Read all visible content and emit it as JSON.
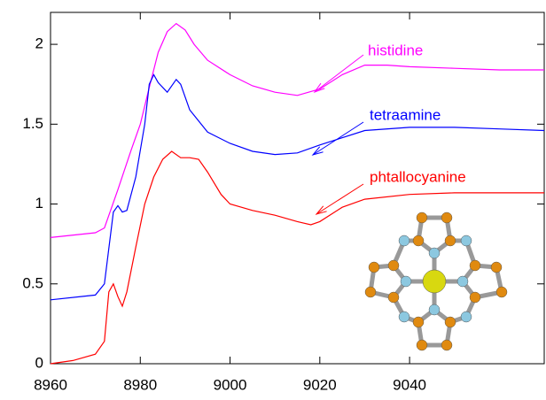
{
  "chart_data": {
    "type": "line",
    "xlim": [
      8960,
      9070
    ],
    "xticks": [
      8960,
      8980,
      9000,
      9020,
      9040
    ],
    "ylim": [
      0,
      2.2
    ],
    "yticks": [
      0,
      0.5,
      1,
      1.5,
      2
    ],
    "series": [
      {
        "name": "histidine",
        "color": "#ff00ff",
        "x": [
          8960,
          8970,
          8972,
          8975,
          8978,
          8980,
          8982,
          8984,
          8986,
          8988,
          8990,
          8992,
          8995,
          9000,
          9005,
          9010,
          9015,
          9020,
          9025,
          9030,
          9035,
          9040,
          9050,
          9060,
          9070
        ],
        "values": [
          0.79,
          0.82,
          0.85,
          1.09,
          1.34,
          1.5,
          1.73,
          1.95,
          2.08,
          2.13,
          2.09,
          2.0,
          1.9,
          1.81,
          1.74,
          1.7,
          1.68,
          1.72,
          1.81,
          1.87,
          1.87,
          1.86,
          1.85,
          1.84,
          1.84
        ]
      },
      {
        "name": "tetraamine",
        "color": "#0000ff",
        "x": [
          8960,
          8970,
          8972,
          8974,
          8975,
          8976,
          8977,
          8979,
          8981,
          8982,
          8983,
          8984,
          8986,
          8988,
          8989,
          8991,
          8995,
          9000,
          9005,
          9010,
          9015,
          9020,
          9030,
          9040,
          9050,
          9060,
          9070
        ],
        "values": [
          0.4,
          0.43,
          0.5,
          0.95,
          0.99,
          0.95,
          0.96,
          1.17,
          1.5,
          1.75,
          1.81,
          1.76,
          1.7,
          1.78,
          1.75,
          1.59,
          1.45,
          1.38,
          1.33,
          1.31,
          1.32,
          1.37,
          1.46,
          1.48,
          1.48,
          1.47,
          1.46
        ]
      },
      {
        "name": "phtallocyanine",
        "color": "#ff0000",
        "x": [
          8960,
          8965,
          8970,
          8972,
          8973,
          8974,
          8975,
          8976,
          8977,
          8979,
          8981,
          8983,
          8985,
          8987,
          8989,
          8991,
          8993,
          8995,
          8998,
          9000,
          9005,
          9010,
          9015,
          9018,
          9020,
          9025,
          9030,
          9040,
          9050,
          9070
        ],
        "values": [
          0.0,
          0.02,
          0.06,
          0.14,
          0.45,
          0.5,
          0.42,
          0.36,
          0.45,
          0.73,
          1.0,
          1.17,
          1.28,
          1.33,
          1.29,
          1.29,
          1.28,
          1.2,
          1.06,
          1.0,
          0.96,
          0.93,
          0.89,
          0.87,
          0.89,
          0.98,
          1.03,
          1.06,
          1.07,
          1.07
        ]
      }
    ]
  }
}
